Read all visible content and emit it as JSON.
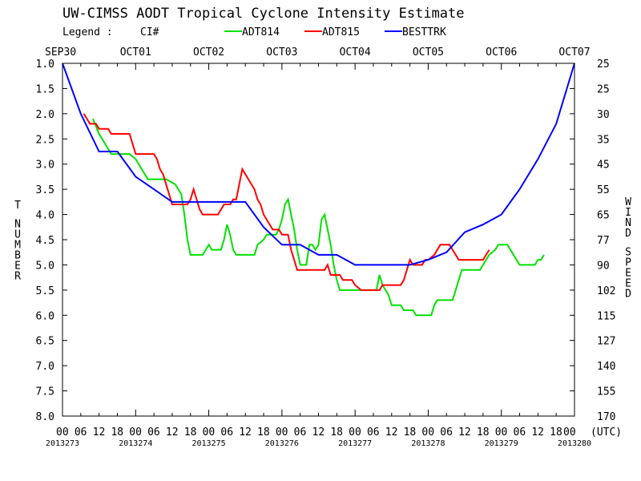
{
  "chart_data": {
    "type": "line",
    "title": "UW-CIMSS AODT Tropical Cyclone Intensity Estimate",
    "legend": {
      "prefix": "Legend :",
      "measure": "CI#",
      "placement": "top"
    },
    "ylabel_left": "T NUMBER",
    "ylabel_right": "WIND SPEED",
    "y_inverted": true,
    "ylim": [
      1.0,
      8.0
    ],
    "y_ticks": [
      "1.0",
      "1.5",
      "2.0",
      "2.5",
      "3.0",
      "3.5",
      "4.0",
      "4.5",
      "5.0",
      "5.5",
      "6.0",
      "6.5",
      "7.0",
      "7.5",
      "8.0"
    ],
    "wind_ticks": [
      "25",
      "25",
      "30",
      "35",
      "45",
      "55",
      "65",
      "77",
      "90",
      "102",
      "115",
      "127",
      "140",
      "155",
      "170"
    ],
    "xlim_hours": [
      0,
      168
    ],
    "date_labels_top": [
      "SEP30",
      "OCT01",
      "OCT02",
      "OCT03",
      "OCT04",
      "OCT05",
      "OCT06",
      "OCT07"
    ],
    "hour_labels_bottom": [
      "00",
      "06",
      "12",
      "18",
      "00",
      "06",
      "12",
      "18",
      "00",
      "06",
      "12",
      "18",
      "00",
      "06",
      "12",
      "18",
      "00",
      "06",
      "12",
      "18",
      "00",
      "06",
      "12",
      "18",
      "00",
      "06",
      "12",
      "18",
      "00"
    ],
    "utc_label": "(UTC)",
    "julian_labels": [
      "2013273",
      "2013274",
      "2013275",
      "2013276",
      "2013277",
      "2013278",
      "2013279",
      "2013280"
    ],
    "x_unit_note": "hours since SEP30 00 UTC",
    "series": [
      {
        "name": "ADT814",
        "color": "#00e000",
        "points": [
          [
            10,
            2.1
          ],
          [
            12,
            2.4
          ],
          [
            14,
            2.6
          ],
          [
            16,
            2.8
          ],
          [
            19,
            2.8
          ],
          [
            22,
            2.8
          ],
          [
            24,
            2.9
          ],
          [
            26,
            3.1
          ],
          [
            28,
            3.3
          ],
          [
            31,
            3.3
          ],
          [
            34,
            3.3
          ],
          [
            37,
            3.4
          ],
          [
            39,
            3.6
          ],
          [
            40,
            4.0
          ],
          [
            41,
            4.5
          ],
          [
            42,
            4.8
          ],
          [
            44,
            4.8
          ],
          [
            46,
            4.8
          ],
          [
            47,
            4.7
          ],
          [
            48,
            4.6
          ],
          [
            49,
            4.7
          ],
          [
            52,
            4.7
          ],
          [
            53,
            4.5
          ],
          [
            54,
            4.2
          ],
          [
            55,
            4.4
          ],
          [
            56,
            4.7
          ],
          [
            57,
            4.8
          ],
          [
            60,
            4.8
          ],
          [
            63,
            4.8
          ],
          [
            64,
            4.6
          ],
          [
            66,
            4.5
          ],
          [
            67,
            4.4
          ],
          [
            70,
            4.4
          ],
          [
            71,
            4.3
          ],
          [
            72,
            4.1
          ],
          [
            73,
            3.8
          ],
          [
            74,
            3.7
          ],
          [
            75,
            4.0
          ],
          [
            76,
            4.3
          ],
          [
            77,
            4.7
          ],
          [
            78,
            5.0
          ],
          [
            80,
            5.0
          ],
          [
            81,
            4.6
          ],
          [
            82,
            4.6
          ],
          [
            83,
            4.7
          ],
          [
            84,
            4.6
          ],
          [
            85,
            4.1
          ],
          [
            86,
            4.0
          ],
          [
            87,
            4.3
          ],
          [
            88,
            4.6
          ],
          [
            89,
            5.0
          ],
          [
            90,
            5.3
          ],
          [
            91,
            5.5
          ],
          [
            94,
            5.5
          ],
          [
            97,
            5.5
          ],
          [
            100,
            5.5
          ],
          [
            103,
            5.5
          ],
          [
            104,
            5.2
          ],
          [
            105,
            5.4
          ],
          [
            107,
            5.6
          ],
          [
            108,
            5.8
          ],
          [
            111,
            5.8
          ],
          [
            112,
            5.9
          ],
          [
            115,
            5.9
          ],
          [
            116,
            6.0
          ],
          [
            119,
            6.0
          ],
          [
            121,
            6.0
          ],
          [
            122,
            5.8
          ],
          [
            123,
            5.7
          ],
          [
            125,
            5.7
          ],
          [
            128,
            5.7
          ],
          [
            129,
            5.5
          ],
          [
            130,
            5.3
          ],
          [
            131,
            5.1
          ],
          [
            134,
            5.1
          ],
          [
            137,
            5.1
          ],
          [
            138,
            5.0
          ],
          [
            139,
            4.9
          ],
          [
            140,
            4.8
          ],
          [
            142,
            4.7
          ],
          [
            143,
            4.6
          ],
          [
            146,
            4.6
          ],
          [
            147,
            4.7
          ],
          [
            148,
            4.8
          ],
          [
            149,
            4.9
          ],
          [
            150,
            5.0
          ],
          [
            153,
            5.0
          ],
          [
            155,
            5.0
          ],
          [
            156,
            4.9
          ],
          [
            157,
            4.9
          ],
          [
            158,
            4.8
          ]
        ]
      },
      {
        "name": "ADT815",
        "color": "#ff0000",
        "points": [
          [
            7,
            2.0
          ],
          [
            8,
            2.1
          ],
          [
            9,
            2.2
          ],
          [
            11,
            2.2
          ],
          [
            12,
            2.3
          ],
          [
            15,
            2.3
          ],
          [
            16,
            2.4
          ],
          [
            19,
            2.4
          ],
          [
            22,
            2.4
          ],
          [
            23,
            2.6
          ],
          [
            24,
            2.8
          ],
          [
            27,
            2.8
          ],
          [
            30,
            2.8
          ],
          [
            31,
            2.9
          ],
          [
            32,
            3.1
          ],
          [
            33,
            3.2
          ],
          [
            34,
            3.4
          ],
          [
            35,
            3.6
          ],
          [
            36,
            3.8
          ],
          [
            39,
            3.8
          ],
          [
            41,
            3.8
          ],
          [
            42,
            3.7
          ],
          [
            43,
            3.5
          ],
          [
            44,
            3.7
          ],
          [
            45,
            3.9
          ],
          [
            46,
            4.0
          ],
          [
            48,
            4.0
          ],
          [
            51,
            4.0
          ],
          [
            52,
            3.9
          ],
          [
            53,
            3.8
          ],
          [
            55,
            3.8
          ],
          [
            56,
            3.7
          ],
          [
            57,
            3.7
          ],
          [
            58,
            3.4
          ],
          [
            59,
            3.1
          ],
          [
            60,
            3.2
          ],
          [
            61,
            3.3
          ],
          [
            62,
            3.4
          ],
          [
            63,
            3.5
          ],
          [
            64,
            3.7
          ],
          [
            65,
            3.8
          ],
          [
            66,
            4.0
          ],
          [
            67,
            4.1
          ],
          [
            68,
            4.2
          ],
          [
            69,
            4.3
          ],
          [
            71,
            4.3
          ],
          [
            72,
            4.4
          ],
          [
            74,
            4.4
          ],
          [
            75,
            4.7
          ],
          [
            76,
            4.9
          ],
          [
            77,
            5.1
          ],
          [
            80,
            5.1
          ],
          [
            83,
            5.1
          ],
          [
            86,
            5.1
          ],
          [
            87,
            5.0
          ],
          [
            88,
            5.2
          ],
          [
            91,
            5.2
          ],
          [
            92,
            5.3
          ],
          [
            95,
            5.3
          ],
          [
            96,
            5.4
          ],
          [
            98,
            5.5
          ],
          [
            101,
            5.5
          ],
          [
            104,
            5.5
          ],
          [
            105,
            5.4
          ],
          [
            108,
            5.4
          ],
          [
            111,
            5.4
          ],
          [
            112,
            5.3
          ],
          [
            113,
            5.1
          ],
          [
            114,
            4.9
          ],
          [
            115,
            5.0
          ],
          [
            118,
            5.0
          ],
          [
            119,
            4.9
          ],
          [
            120,
            4.9
          ],
          [
            122,
            4.8
          ],
          [
            123,
            4.7
          ],
          [
            124,
            4.6
          ],
          [
            127,
            4.6
          ],
          [
            128,
            4.7
          ],
          [
            129,
            4.8
          ],
          [
            130,
            4.9
          ],
          [
            133,
            4.9
          ],
          [
            136,
            4.9
          ],
          [
            138,
            4.9
          ],
          [
            139,
            4.8
          ],
          [
            140,
            4.7
          ]
        ]
      },
      {
        "name": "BESTTRK",
        "color": "#0000ff",
        "points": [
          [
            0,
            1.0
          ],
          [
            6,
            2.0
          ],
          [
            12,
            2.75
          ],
          [
            18,
            2.75
          ],
          [
            24,
            3.25
          ],
          [
            30,
            3.5
          ],
          [
            36,
            3.75
          ],
          [
            42,
            3.75
          ],
          [
            48,
            3.75
          ],
          [
            54,
            3.75
          ],
          [
            60,
            3.75
          ],
          [
            66,
            4.25
          ],
          [
            72,
            4.6
          ],
          [
            78,
            4.6
          ],
          [
            84,
            4.8
          ],
          [
            90,
            4.8
          ],
          [
            96,
            5.0
          ],
          [
            102,
            5.0
          ],
          [
            108,
            5.0
          ],
          [
            114,
            5.0
          ],
          [
            120,
            4.9
          ],
          [
            126,
            4.75
          ],
          [
            132,
            4.35
          ],
          [
            138,
            4.2
          ],
          [
            144,
            4.0
          ],
          [
            150,
            3.5
          ],
          [
            156,
            2.9
          ],
          [
            162,
            2.2
          ],
          [
            168,
            1.0
          ]
        ]
      }
    ]
  }
}
